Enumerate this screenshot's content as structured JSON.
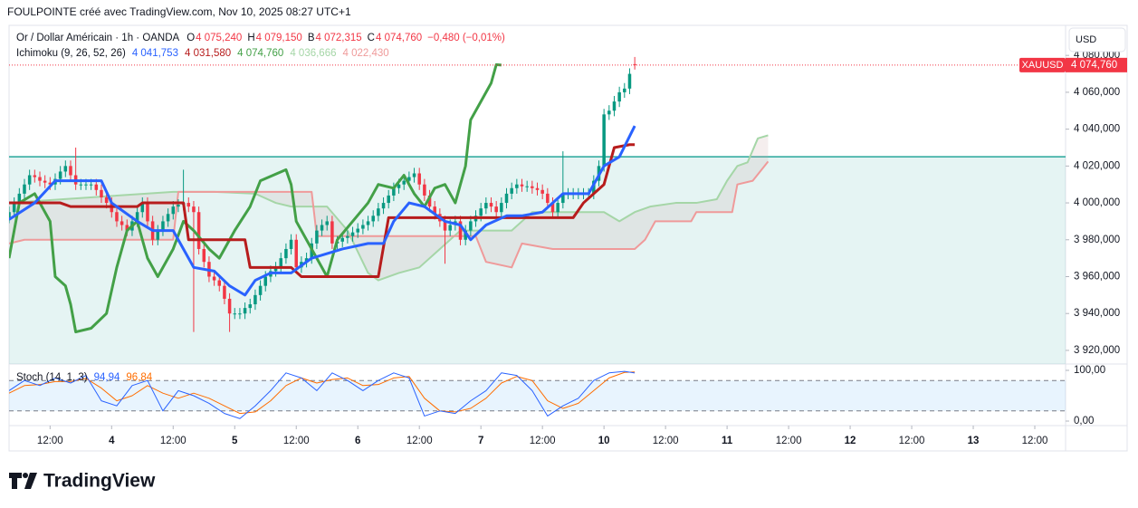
{
  "header": {
    "text": "FOULPOINTE créé avec TradingView.com, Nov 10, 2025 08:27 UTC+1"
  },
  "footer": {
    "brand": "TradingView"
  },
  "chart_data": {
    "type": "candlestick",
    "symbol": "Or / Dollar Américain · 1h · OANDA",
    "ohlc_legend": [
      {
        "key": "O",
        "value": 4075.24,
        "label": "4 075,240"
      },
      {
        "key": "H",
        "value": 4079.15,
        "label": "4 079,150"
      },
      {
        "key": "B",
        "value": 4072.315,
        "label": "4 072,315"
      },
      {
        "key": "C",
        "value": 4074.76,
        "label": "4 074,760"
      }
    ],
    "change": {
      "value": -0.48,
      "label": "−0,480 (−0,01%)"
    },
    "currency": "USD",
    "up_color": "#089981",
    "down_color": "#f23645",
    "xlim": [
      0,
      206
    ],
    "xticks": [
      {
        "value": 8,
        "label": "12:00"
      },
      {
        "value": 20,
        "label": "4"
      },
      {
        "value": 32,
        "label": "12:00"
      },
      {
        "value": 44,
        "label": "5"
      },
      {
        "value": 56,
        "label": "12:00"
      },
      {
        "value": 68,
        "label": "6"
      },
      {
        "value": 80,
        "label": "12:00"
      },
      {
        "value": 92,
        "label": "7"
      },
      {
        "value": 104,
        "label": "12:00"
      },
      {
        "value": 116,
        "label": "10"
      },
      {
        "value": 128,
        "label": "12:00"
      },
      {
        "value": 140,
        "label": "11"
      },
      {
        "value": 152,
        "label": "12:00"
      },
      {
        "value": 164,
        "label": "12"
      },
      {
        "value": 176,
        "label": "12:00"
      },
      {
        "value": 188,
        "label": "13"
      },
      {
        "value": 200,
        "label": "12:00"
      }
    ],
    "ylim": [
      3912.6,
      4096.3
    ],
    "yticks": [
      {
        "value": 4080,
        "label": "4 080,000"
      },
      {
        "value": 4060,
        "label": "4 060,000"
      },
      {
        "value": 4040,
        "label": "4 040,000"
      },
      {
        "value": 4020,
        "label": "4 020,000"
      },
      {
        "value": 4000,
        "label": "4 000,000"
      },
      {
        "value": 3980,
        "label": "3 980,000"
      },
      {
        "value": 3960,
        "label": "3 960,000"
      },
      {
        "value": 3940,
        "label": "3 940,000"
      },
      {
        "value": 3920,
        "label": "3 920,000"
      }
    ],
    "x": [
      0,
      1,
      2,
      3,
      4,
      5,
      6,
      7,
      8,
      9,
      10,
      11,
      12,
      13,
      14,
      15,
      16,
      17,
      18,
      19,
      20,
      21,
      22,
      23,
      24,
      25,
      26,
      27,
      28,
      29,
      30,
      31,
      32,
      33,
      34,
      35,
      36,
      37,
      38,
      39,
      40,
      41,
      42,
      43,
      44,
      45,
      46,
      47,
      48,
      49,
      50,
      51,
      52,
      53,
      54,
      55,
      56,
      57,
      58,
      59,
      60,
      61,
      62,
      63,
      64,
      65,
      66,
      67,
      68,
      69,
      70,
      71,
      72,
      73,
      74,
      75,
      76,
      77,
      78,
      79,
      80,
      81,
      82,
      83,
      84,
      85,
      86,
      87,
      88,
      89,
      90,
      91,
      92,
      93,
      94,
      95,
      96,
      97,
      98,
      99,
      100,
      101,
      102,
      103,
      104,
      105,
      106,
      107,
      108,
      109,
      110,
      111,
      112,
      113,
      114,
      115,
      116,
      117,
      118,
      119,
      120,
      121,
      122
    ],
    "open": [
      3992,
      3995,
      4000,
      4005,
      4010,
      4015,
      4014,
      4012,
      4011,
      4010,
      4013,
      4017,
      4020,
      4015,
      4010,
      4010,
      4010,
      4010,
      4007,
      4003,
      4000,
      3995,
      3990,
      3988,
      3985,
      3990,
      3995,
      4000,
      3990,
      3980,
      3985,
      3990,
      3994,
      3998,
      3999,
      4000,
      3998,
      3995,
      3975,
      3968,
      3960,
      3958,
      3955,
      3948,
      3940,
      3940,
      3940,
      3943,
      3945,
      3950,
      3955,
      3960,
      3963,
      3965,
      3970,
      3975,
      3980,
      3965,
      3968,
      3970,
      3978,
      3985,
      3988,
      3990,
      3978,
      3979,
      3981,
      3982,
      3984,
      3986,
      3988,
      3990,
      3993,
      3997,
      4000,
      4004,
      4008,
      4010,
      4012,
      4014,
      4016,
      4010,
      4004,
      3998,
      3994,
      3990,
      3985,
      3988,
      3990,
      3980,
      3985,
      3990,
      3993,
      3997,
      4000,
      3998,
      3995,
      4000,
      4005,
      4008,
      4010,
      4009,
      4009,
      4008,
      4007,
      4005,
      4000,
      3995,
      4000,
      4005,
      4005,
      4005,
      4005,
      4005,
      4005,
      4012,
      4020,
      4048,
      4050,
      4055,
      4060,
      4062,
      4075.24
    ],
    "high": [
      3998,
      4003,
      4008,
      4013,
      4018,
      4018,
      4017,
      4015,
      4014,
      4016,
      4020,
      4023,
      4023,
      4030,
      4013,
      4013,
      4013,
      4013,
      4010,
      4006,
      4003,
      3998,
      3993,
      3991,
      3993,
      3998,
      4003,
      4003,
      3993,
      3988,
      3993,
      3997,
      4001,
      4002,
      4018,
      4003,
      4001,
      3998,
      3978,
      3971,
      3963,
      3961,
      3958,
      3951,
      3943,
      3943,
      3946,
      3948,
      3953,
      3958,
      3963,
      3966,
      3968,
      3973,
      3978,
      3983,
      3983,
      3971,
      3973,
      3981,
      3988,
      3991,
      3993,
      3993,
      3982,
      3984,
      3985,
      3987,
      3989,
      3991,
      3993,
      3996,
      4000,
      4003,
      4007,
      4011,
      4013,
      4015,
      4017,
      4019,
      4019,
      4013,
      4007,
      4001,
      3997,
      3993,
      3991,
      3993,
      3993,
      3988,
      3993,
      3996,
      4000,
      4003,
      4003,
      4001,
      4003,
      4008,
      4011,
      4013,
      4013,
      4012,
      4012,
      4011,
      4010,
      4008,
      4003,
      4003,
      4028,
      4008,
      4008,
      4008,
      4008,
      4008,
      4015,
      4023,
      4051,
      4053,
      4058,
      4063,
      4065,
      4073,
      4079.15
    ],
    "low": [
      3989,
      3992,
      3997,
      4002,
      4007,
      4011,
      4009,
      4008,
      4007,
      4007,
      4010,
      4014,
      4012,
      4007,
      4007,
      4007,
      4007,
      4004,
      4000,
      3997,
      3992,
      3987,
      3985,
      3982,
      3982,
      3987,
      3992,
      3987,
      3977,
      3977,
      3982,
      3987,
      3991,
      3995,
      3996,
      3995,
      3930,
      3972,
      3965,
      3957,
      3955,
      3952,
      3945,
      3930,
      3937,
      3937,
      3937,
      3940,
      3942,
      3947,
      3952,
      3957,
      3960,
      3962,
      3967,
      3972,
      3962,
      3962,
      3965,
      3967,
      3975,
      3982,
      3985,
      3975,
      3975,
      3976,
      3978,
      3979,
      3981,
      3983,
      3985,
      3987,
      3990,
      3994,
      3997,
      4001,
      4005,
      4007,
      4009,
      4011,
      4007,
      4001,
      3995,
      3991,
      3987,
      3967,
      3982,
      3985,
      3977,
      3977,
      3982,
      3987,
      3990,
      3994,
      3995,
      3992,
      3992,
      3997,
      4002,
      4005,
      4006,
      4006,
      4005,
      4004,
      4002,
      3997,
      3992,
      3992,
      3997,
      4002,
      4002,
      4002,
      4002,
      4002,
      4002,
      4009,
      4017,
      4045,
      4047,
      4052,
      4057,
      4059,
      4072.315
    ],
    "close": [
      3995,
      4000,
      4005,
      4010,
      4015,
      4014,
      4012,
      4011,
      4010,
      4013,
      4017,
      4020,
      4015,
      4010,
      4010,
      4010,
      4010,
      4007,
      4003,
      4000,
      3995,
      3990,
      3988,
      3985,
      3990,
      3995,
      4000,
      3990,
      3980,
      3985,
      3990,
      3994,
      3998,
      3999,
      4000,
      3998,
      3995,
      3975,
      3968,
      3960,
      3958,
      3955,
      3948,
      3940,
      3940,
      3940,
      3943,
      3945,
      3950,
      3955,
      3960,
      3963,
      3965,
      3970,
      3975,
      3980,
      3965,
      3968,
      3970,
      3978,
      3985,
      3988,
      3990,
      3978,
      3979,
      3981,
      3982,
      3984,
      3986,
      3988,
      3990,
      3993,
      3997,
      4000,
      4004,
      4008,
      4010,
      4012,
      4014,
      4016,
      4010,
      4004,
      3998,
      3994,
      3990,
      3985,
      3988,
      3990,
      3980,
      3985,
      3990,
      3993,
      3997,
      4000,
      3998,
      3995,
      4000,
      4005,
      4008,
      4010,
      4009,
      4009,
      4008,
      4007,
      4005,
      4000,
      3995,
      4000,
      4005,
      4005,
      4005,
      4005,
      4005,
      4005,
      4012,
      4020,
      4048,
      4050,
      4055,
      4060,
      4062,
      4070,
      4074.76
    ],
    "zone": {
      "top": 4025,
      "color": "#26a69a"
    },
    "last_price": {
      "symbol": "XAUUSD",
      "value": 4074.76,
      "label": "4 074,760",
      "color": "#f23645"
    },
    "ichimoku": {
      "name": "Ichimoku (9, 26, 52, 26)",
      "cloud_color": "#c8a0a0",
      "lines": [
        {
          "color": "#2962ff",
          "width": 3,
          "legend_label": "4 041,753",
          "x": [
            0,
            5,
            9,
            12,
            18,
            20,
            25,
            28,
            32,
            34,
            36,
            40,
            43,
            46,
            48,
            51,
            55,
            59,
            65,
            70,
            73,
            75,
            78,
            81,
            85,
            88,
            90,
            93,
            97,
            100,
            104,
            108,
            113,
            116,
            119,
            122
          ],
          "values": [
            3991,
            4000,
            4012,
            4012,
            4012,
            4000,
            3990,
            3985,
            3985,
            3975,
            3965,
            3963,
            3955,
            3950,
            3958,
            3962,
            3962,
            3970,
            3975,
            3978,
            3978,
            3990,
            4000,
            3998,
            3990,
            3988,
            3980,
            3988,
            3993,
            3993,
            3995,
            4005,
            4005,
            4020,
            4025,
            4041.753
          ]
        },
        {
          "color": "#b71c1c",
          "width": 3,
          "legend_label": "4 031,580",
          "x": [
            0,
            10,
            12,
            25,
            26,
            34,
            35,
            46,
            47,
            55,
            57,
            72,
            74,
            110,
            112,
            114,
            116,
            118,
            121,
            122
          ],
          "values": [
            4000,
            4000,
            3998,
            3998,
            4000,
            4000,
            3980,
            3980,
            3965,
            3965,
            3960,
            3960,
            3992,
            3992,
            4000,
            4005,
            4010,
            4030,
            4031.58,
            4031.58
          ]
        },
        {
          "color": "#43a047",
          "width": 3,
          "legend_label": "4 074,760",
          "x": [
            0,
            2,
            5,
            8,
            9,
            11,
            12,
            13,
            16,
            19,
            21,
            23,
            25,
            27,
            29,
            32,
            34,
            36,
            39,
            41,
            44,
            47,
            49,
            54,
            55,
            56,
            59,
            62,
            64,
            67,
            70,
            72,
            75,
            77,
            79,
            81,
            83,
            85,
            87,
            89,
            90,
            92,
            94,
            95,
            96
          ],
          "values": [
            3970,
            4000,
            4005,
            3990,
            3960,
            3955,
            3945,
            3930,
            3932,
            3940,
            3965,
            3985,
            3990,
            3970,
            3960,
            3975,
            3990,
            3985,
            3975,
            3970,
            3985,
            3998,
            4012,
            4018,
            4010,
            3990,
            3975,
            3960,
            3980,
            3990,
            4000,
            4010,
            4008,
            4015,
            4005,
            3998,
            4008,
            4010,
            4000,
            4020,
            4045,
            4055,
            4065,
            4075,
            4074.76
          ]
        },
        {
          "color": "#a5d6a7",
          "width": 2,
          "legend_label": "4 036,666",
          "x": [
            0,
            32,
            40,
            48,
            52,
            55,
            62,
            66,
            70,
            72,
            76,
            80,
            84,
            88,
            98,
            102,
            116,
            119,
            122,
            125,
            130,
            134,
            138,
            140,
            142,
            144,
            146,
            148
          ],
          "values": [
            4000,
            4006,
            4006,
            4005,
            4000,
            3998,
            3998,
            3985,
            3962,
            3958,
            3962,
            3965,
            3975,
            3985,
            3985,
            3995,
            3995,
            3990,
            3995,
            3998,
            4000,
            4000,
            4002,
            4012,
            4020,
            4022,
            4035,
            4036.666
          ]
        },
        {
          "color": "#ef9a9a",
          "width": 2,
          "legend_label": "4 022,430",
          "x": [
            0,
            3,
            32,
            33,
            59,
            60,
            91,
            93,
            98,
            100,
            106,
            122,
            124,
            126,
            133,
            134,
            141,
            142,
            145,
            148
          ],
          "values": [
            3978,
            3980,
            3980,
            4006,
            4006,
            3982,
            3982,
            3968,
            3965,
            3978,
            3975,
            3975,
            3980,
            3990,
            3990,
            3995,
            3995,
            4010,
            4012,
            4022.43
          ]
        }
      ]
    },
    "stoch": {
      "name": "Stoch (14, 1, 3)",
      "ylim": [
        -8.9,
        112.5
      ],
      "yticks": [
        {
          "value": 100,
          "label": "100,00"
        },
        {
          "value": 0,
          "label": "0,00"
        }
      ],
      "bands": [
        20,
        80
      ],
      "x": [
        0,
        3,
        6,
        9,
        12,
        15,
        18,
        21,
        24,
        27,
        30,
        33,
        36,
        39,
        42,
        45,
        48,
        51,
        54,
        57,
        60,
        63,
        66,
        69,
        72,
        75,
        78,
        81,
        84,
        87,
        90,
        93,
        96,
        99,
        102,
        105,
        108,
        111,
        114,
        117,
        120,
        122
      ],
      "series": [
        {
          "color": "#2962ff",
          "legend_label": "94,94",
          "values": [
            60,
            80,
            70,
            85,
            75,
            90,
            40,
            30,
            70,
            80,
            20,
            60,
            50,
            35,
            15,
            5,
            30,
            60,
            95,
            85,
            60,
            95,
            80,
            60,
            80,
            95,
            85,
            10,
            20,
            15,
            40,
            60,
            95,
            90,
            60,
            10,
            30,
            45,
            80,
            95,
            98,
            94.94
          ]
        },
        {
          "color": "#ff6d00",
          "legend_label": "96,84",
          "values": [
            55,
            70,
            72,
            78,
            78,
            84,
            65,
            40,
            50,
            70,
            55,
            45,
            55,
            45,
            30,
            15,
            18,
            40,
            70,
            85,
            75,
            82,
            85,
            70,
            72,
            85,
            88,
            45,
            20,
            18,
            25,
            45,
            75,
            88,
            80,
            40,
            25,
            35,
            60,
            85,
            96,
            96.84
          ]
        }
      ]
    }
  }
}
